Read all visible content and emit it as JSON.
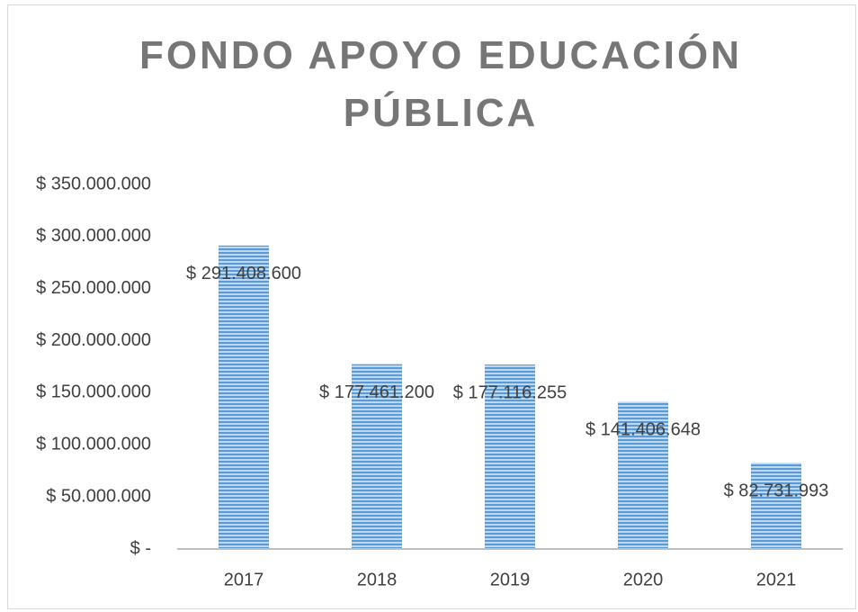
{
  "chart_data": {
    "type": "bar",
    "title": "FONDO APOYO EDUCACIÓN PÚBLICA",
    "categories": [
      "2017",
      "2018",
      "2019",
      "2020",
      "2021"
    ],
    "values": [
      291408600,
      177461200,
      177116255,
      141406648,
      82731993
    ],
    "value_labels": [
      "$ 291.408.600",
      "$ 177.461.200",
      "$ 177.116.255",
      "$ 141.406.648",
      "$ 82.731.993"
    ],
    "color": "#5b9bd5",
    "ylim": [
      0,
      350000000
    ],
    "yticks": [
      {
        "value": 0,
        "label": "$ -"
      },
      {
        "value": 50000000,
        "label": "$ 50.000.000"
      },
      {
        "value": 100000000,
        "label": "$ 100.000.000"
      },
      {
        "value": 150000000,
        "label": "$ 150.000.000"
      },
      {
        "value": 200000000,
        "label": "$ 200.000.000"
      },
      {
        "value": 250000000,
        "label": "$ 250.000.000"
      },
      {
        "value": 300000000,
        "label": "$ 300.000.000"
      },
      {
        "value": 350000000,
        "label": "$ 350.000.000"
      }
    ],
    "grid": false
  }
}
